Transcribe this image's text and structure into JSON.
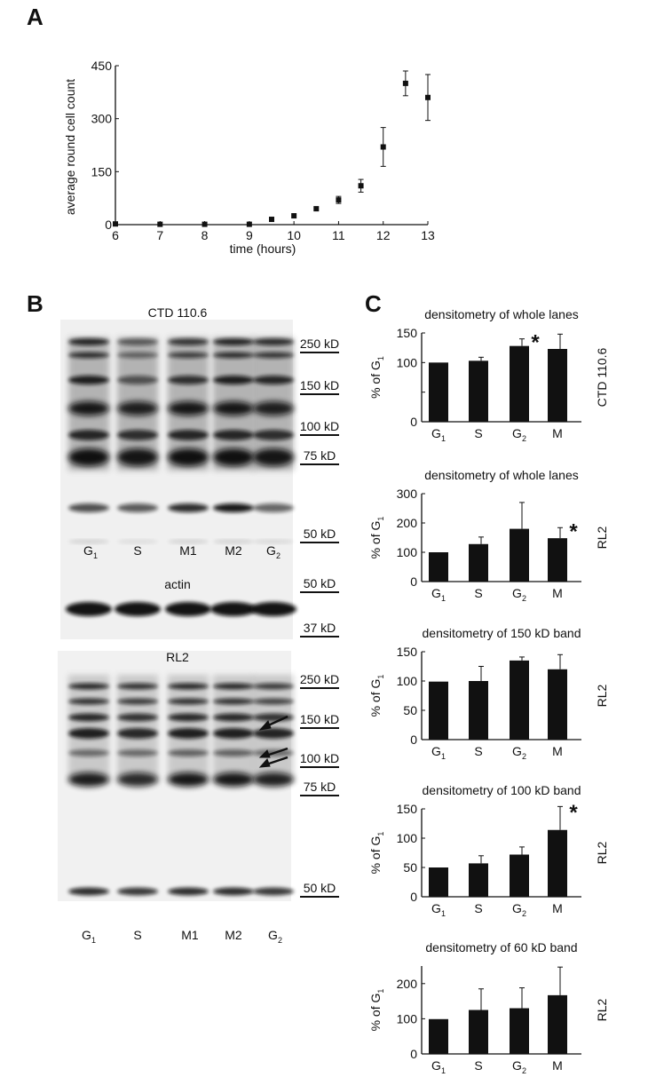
{
  "panels": {
    "a": "A",
    "b": "B",
    "c": "C"
  },
  "blot": {
    "top_title": "CTD 110.6",
    "actin_title": "actin",
    "bottom_title": "RL2",
    "lanes_top": [
      "G1",
      "S",
      "M1",
      "M2",
      "G2"
    ],
    "lanes_bottom": [
      "G1",
      "S",
      "M1",
      "M2",
      "G2"
    ],
    "markers_top": [
      "250 kD",
      "150 kD",
      "100 kD",
      "75 kD",
      "50 kD"
    ],
    "markers_actin": [
      "50 kD",
      "37 kD"
    ],
    "markers_bottom": [
      "250 kD",
      "150 kD",
      "100 kD",
      "75 kD",
      "50 kD"
    ]
  },
  "chart_data": [
    {
      "type": "scatter",
      "title": "",
      "xlabel": "time (hours)",
      "ylabel": "average round cell count",
      "xlim": [
        6,
        13
      ],
      "ylim": [
        0,
        450
      ],
      "xticks": [
        6,
        7,
        8,
        9,
        10,
        11,
        12,
        13
      ],
      "yticks": [
        0,
        150,
        300,
        450
      ],
      "x": [
        6,
        7,
        8,
        9,
        9.5,
        10,
        10.5,
        11,
        11.5,
        12,
        12.5,
        13
      ],
      "y": [
        2,
        1,
        1,
        1,
        15,
        25,
        45,
        70,
        110,
        220,
        400,
        360
      ],
      "err": [
        0,
        0,
        0,
        0,
        0,
        0,
        0,
        10,
        18,
        55,
        35,
        65
      ]
    },
    {
      "type": "bar",
      "title": "densitometry of whole lanes",
      "side_label": "CTD 110.6",
      "ylabel": "% of G1",
      "categories": [
        "G1",
        "S",
        "G2",
        "M"
      ],
      "values": [
        100,
        103,
        128,
        123
      ],
      "err": [
        0,
        6,
        12,
        25
      ],
      "ylim": [
        0,
        150
      ],
      "yticks": [
        0,
        50,
        100,
        150
      ],
      "yticklabels": [
        "0",
        "",
        "100",
        "150"
      ],
      "star_index": 2
    },
    {
      "type": "bar",
      "title": "densitometry of whole lanes",
      "side_label": "RL2",
      "ylabel": "% of G1",
      "categories": [
        "G1",
        "S",
        "G2",
        "M"
      ],
      "values": [
        100,
        128,
        180,
        148
      ],
      "err": [
        0,
        24,
        90,
        36
      ],
      "ylim": [
        0,
        300
      ],
      "yticks": [
        0,
        100,
        200,
        300
      ],
      "yticklabels": [
        "0",
        "100",
        "200",
        "300"
      ],
      "star_index": 3
    },
    {
      "type": "bar",
      "title": "densitometry of 150 kD band",
      "side_label": "RL2",
      "ylabel": "% of G1",
      "categories": [
        "G1",
        "S",
        "G2",
        "M"
      ],
      "values": [
        99,
        100,
        135,
        120
      ],
      "err": [
        0,
        25,
        6,
        25
      ],
      "ylim": [
        0,
        150
      ],
      "yticks": [
        0,
        50,
        100,
        150
      ],
      "yticklabels": [
        "0",
        "50",
        "100",
        "150"
      ]
    },
    {
      "type": "bar",
      "title": "densitometry of 100 kD band",
      "side_label": "RL2",
      "ylabel": "% of G1",
      "categories": [
        "G1",
        "S",
        "G2",
        "M"
      ],
      "values": [
        50,
        57,
        72,
        114
      ],
      "err": [
        0,
        13,
        13,
        40
      ],
      "ylim": [
        0,
        150
      ],
      "yticks": [
        0,
        50,
        100,
        150
      ],
      "yticklabels": [
        "0",
        "50",
        "100",
        "150"
      ],
      "star_index": 3
    },
    {
      "type": "bar",
      "title": "densitometry of 60 kD band",
      "side_label": "RL2",
      "ylabel": "% of G1",
      "categories": [
        "G1",
        "S",
        "G2",
        "M"
      ],
      "values": [
        99,
        125,
        130,
        167
      ],
      "err": [
        0,
        60,
        58,
        80
      ],
      "ylim": [
        0,
        250
      ],
      "yticks": [
        0,
        100,
        200
      ],
      "yticklabels": [
        "0",
        "100",
        "200"
      ]
    }
  ]
}
